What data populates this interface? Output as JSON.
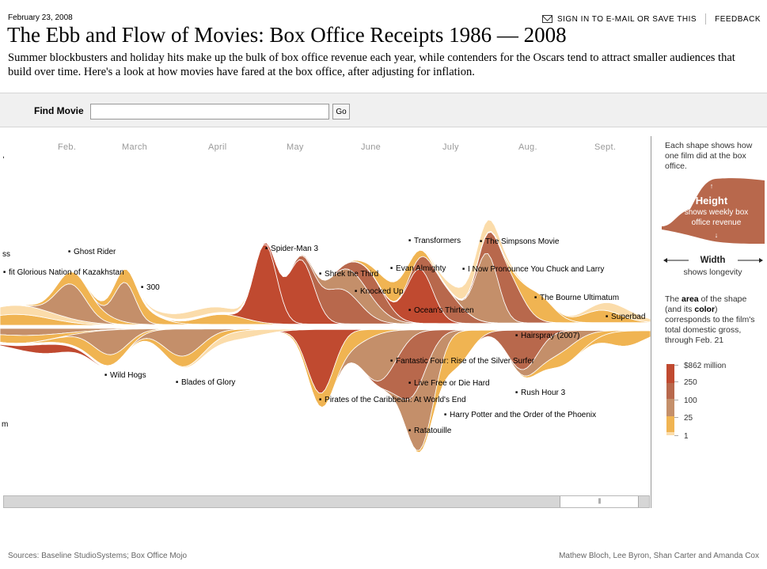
{
  "header": {
    "date": "February 23, 2008",
    "sign_in": "SIGN IN TO E-MAIL OR SAVE THIS",
    "feedback": "FEEDBACK",
    "title": "The Ebb and Flow of Movies: Box Office Receipts 1986 — 2008",
    "subtitle": "Summer blockbusters and holiday hits make up the bulk of box office revenue each year, while contenders for the Oscars tend to attract smaller audiences that build over time. Here's a look at how movies have fared at the box office, after adjusting for inflation."
  },
  "search": {
    "label": "Find Movie",
    "value": "",
    "placeholder": "",
    "go": "Go"
  },
  "months": [
    "Feb.",
    "March",
    "April",
    "May",
    "June",
    "July",
    "Aug.",
    "Sept."
  ],
  "edge_labels": {
    "top": ",",
    "mid": "ss",
    "bottom": "m"
  },
  "movie_labels": [
    "Ghost Rider",
    "fit Glorious Nation of Kazakhstan",
    "300",
    "Wild Hogs",
    "Blades of Glory",
    "Spider-Man 3",
    "Shrek the Third",
    "Knocked Up",
    "Pirates of the Caribbean: At World's End",
    "Transformers",
    "Evan Almighty",
    "Ocean's Thirteen",
    "Fantastic Four: Rise of the Silver Surfer",
    "Live Free or Die Hard",
    "Ratatouille",
    "Harry Potter and the Order of the Phoenix",
    "The Simpsons Movie",
    "I Now Pronounce You Chuck and Larry",
    "The Bourne Ultimatum",
    "Hairspray (2007)",
    "Rush Hour 3",
    "Superbad"
  ],
  "legend": {
    "intro": "Each shape shows how one film did at the box office.",
    "height_title": "Height",
    "height_desc": "shows weekly box office revenue",
    "width_title": "Width",
    "width_desc": "shows longevity",
    "area_prefix": "The ",
    "area_word": "area",
    "area_mid1": " of the shape (and its ",
    "area_word2": "color",
    "area_rest": ") corresponds to the film's total domestic gross, through Feb. 21",
    "scale": [
      {
        "label": "$862 million",
        "color": "#c04a30"
      },
      {
        "label": "250",
        "color": "#b8684c"
      },
      {
        "label": "100",
        "color": "#c48f6a"
      },
      {
        "label": "25",
        "color": "#f0b452"
      },
      {
        "label": "1",
        "color": "#fbdcaa"
      }
    ]
  },
  "scrollbar": {
    "grip": "|||"
  },
  "footer": {
    "sources": "Sources: Baseline StudioSystems; Box Office Mojo",
    "credits": "Mathew Bloch, Lee Byron, Shan Carter and Amanda Cox"
  },
  "colors": {
    "red": "#c04a30",
    "brown": "#b8684c",
    "tan": "#c48f6a",
    "yellow": "#f0b452",
    "pale": "#fbdcaa"
  }
}
